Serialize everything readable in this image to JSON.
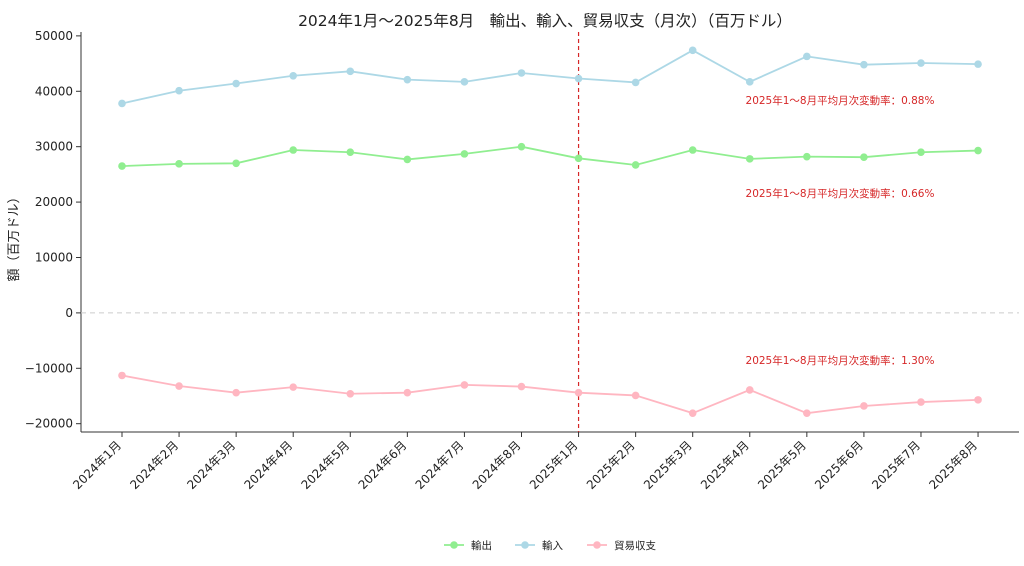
{
  "chart_data": {
    "type": "line",
    "title": "2024年1月～2025年8月　輸出、輸入、貿易収支（月次）（百万ドル）",
    "xlabel": "",
    "ylabel": "額（百万ドル）",
    "categories": [
      "2024年1月",
      "2024年2月",
      "2024年3月",
      "2024年4月",
      "2024年5月",
      "2024年6月",
      "2024年7月",
      "2024年8月",
      "2025年1月",
      "2025年2月",
      "2025年3月",
      "2025年4月",
      "2025年5月",
      "2025年6月",
      "2025年7月",
      "2025年8月"
    ],
    "ylim": [
      -21500,
      50700
    ],
    "yticks": [
      -20000,
      -10000,
      0,
      10000,
      20000,
      30000,
      40000,
      50000
    ],
    "series": [
      {
        "name": "輸出",
        "color": "#90ee90",
        "values": [
          26500,
          26900,
          27000,
          29400,
          29000,
          27700,
          28700,
          30000,
          27900,
          26700,
          29400,
          27800,
          28200,
          28100,
          29000,
          29300
        ]
      },
      {
        "name": "輸入",
        "color": "#add8e6",
        "values": [
          37800,
          40100,
          41400,
          42800,
          43600,
          42100,
          41700,
          43300,
          42300,
          41600,
          47400,
          41700,
          46300,
          44800,
          45100,
          44900
        ]
      },
      {
        "name": "貿易収支",
        "color": "#ffb6c1",
        "values": [
          -11300,
          -13200,
          -14400,
          -13400,
          -14600,
          -14400,
          -13000,
          -13300,
          -14400,
          -14900,
          -18100,
          -13900,
          -18100,
          -16800,
          -16100,
          -15700
        ]
      }
    ],
    "divider_at": "2025年1月",
    "divider_color": "#d62728",
    "zero_line": true,
    "grid": false,
    "legend_position": "bottom-center",
    "annotations": [
      {
        "text": "2025年1～8月平均月次変動率：0.88%",
        "y": 38400
      },
      {
        "text": "2025年1～8月平均月次変動率：0.66%",
        "y": 21600
      },
      {
        "text": "2025年1～8月平均月次変動率：1.30%",
        "y": -8500
      }
    ],
    "annotation_color": "#d62728"
  }
}
